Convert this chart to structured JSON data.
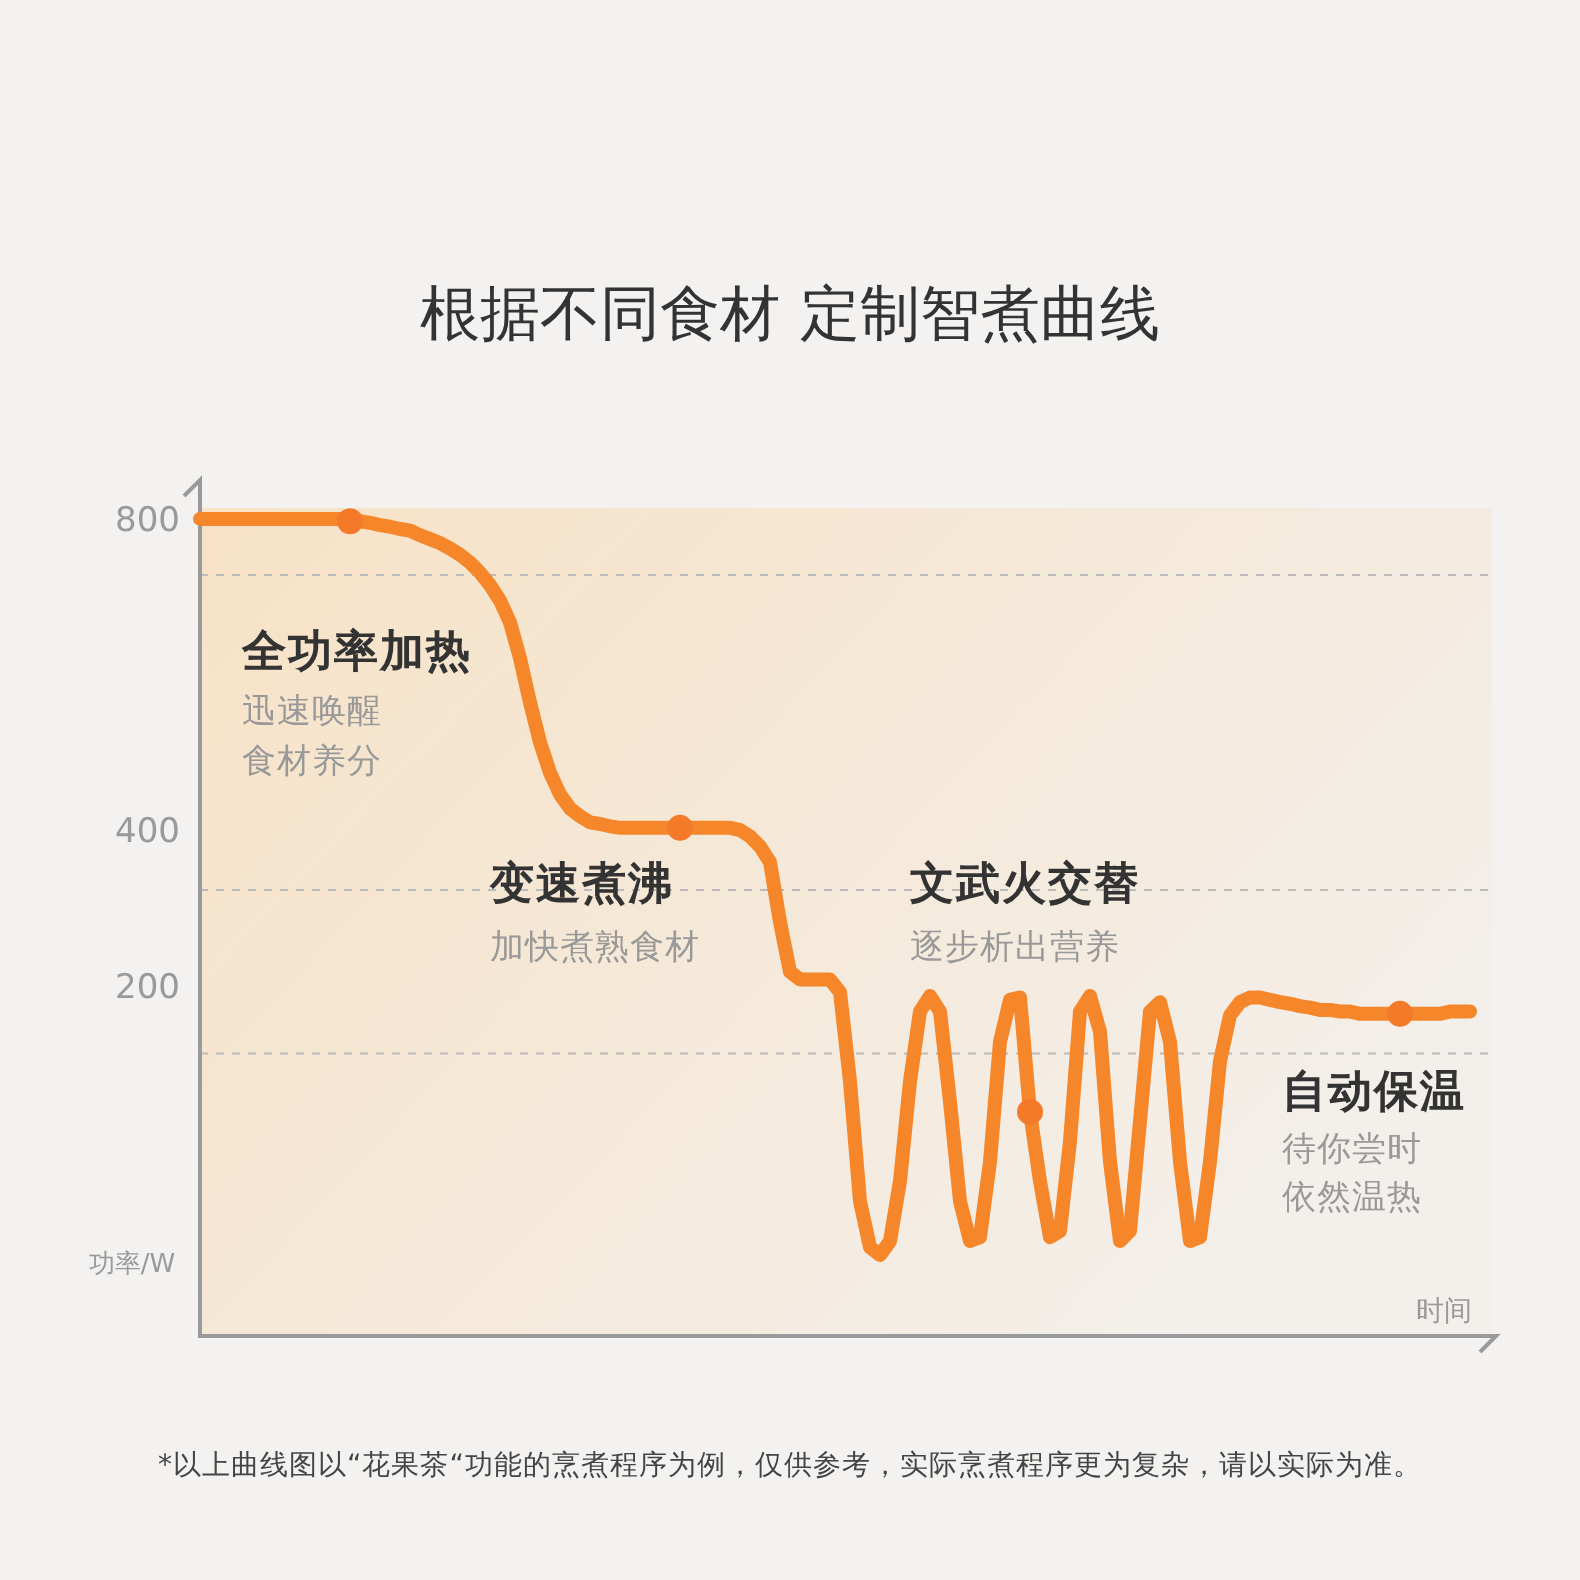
{
  "chart_data": {
    "type": "line",
    "title": "根据不同食材 定制智煮曲线",
    "xlabel": "时间",
    "ylabel": "功率/W",
    "categories": [
      null,
      null,
      null,
      null,
      null,
      null,
      null,
      null,
      null,
      null,
      null,
      null,
      null,
      null,
      null,
      null,
      null,
      null,
      null,
      null,
      null,
      null,
      null,
      null,
      null,
      null,
      null,
      null,
      null,
      null,
      null,
      null,
      null,
      null,
      null,
      null,
      null,
      null,
      null,
      null,
      null,
      null,
      null,
      null,
      null,
      null,
      null,
      null,
      null,
      null,
      null,
      null,
      null,
      null,
      null,
      null,
      null,
      null,
      null,
      null,
      null,
      null,
      null,
      null,
      null,
      null,
      null,
      null,
      null,
      null,
      null,
      null,
      null,
      null,
      null,
      null,
      null,
      null,
      null,
      null,
      null,
      null,
      null,
      null,
      null,
      null,
      null,
      null,
      null,
      null,
      null,
      null,
      null,
      null,
      null,
      null,
      null,
      null,
      null,
      null,
      null,
      null,
      null,
      null,
      null,
      null,
      null,
      null,
      null,
      null,
      null,
      null,
      null,
      null,
      null,
      null,
      null,
      null,
      null,
      null,
      null,
      null,
      null,
      null,
      null,
      null,
      null,
      null
    ],
    "series": [
      {
        "color": "#f5862a",
        "values": [
          800,
          800,
          800,
          800,
          800,
          800,
          800,
          800,
          800,
          800,
          800,
          800,
          800,
          800,
          800,
          797,
          797,
          795,
          792,
          790,
          787,
          785,
          779,
          774,
          769,
          762,
          754,
          744,
          731,
          715,
          695,
          667,
          621,
          564,
          513,
          474,
          446,
          428,
          418,
          410,
          408,
          405,
          403,
          403,
          403,
          403,
          403,
          403,
          403,
          403,
          403,
          403,
          403,
          403,
          400,
          392,
          379,
          359,
          282,
          218,
          208,
          208,
          208,
          208,
          192,
          77,
          -77,
          -136,
          -146,
          -128,
          -51,
          77,
          167,
          187,
          167,
          51,
          -77,
          -128,
          -123,
          -26,
          128,
          182,
          185,
          38,
          -51,
          -123,
          -115,
          0,
          167,
          187,
          141,
          -26,
          -128,
          -115,
          26,
          167,
          179,
          128,
          -26,
          -128,
          -123,
          -26,
          103,
          162,
          179,
          185,
          185,
          182,
          179,
          177,
          174,
          172,
          169,
          169,
          167,
          167,
          164,
          164,
          164,
          164,
          164,
          164,
          164,
          164,
          164,
          167,
          167,
          167
        ]
      },
      {
        "type": "scatter",
        "marker": "circle",
        "color": "#f47a2a",
        "values": [
          null,
          null,
          null,
          null,
          null,
          null,
          null,
          null,
          null,
          null,
          null,
          null,
          null,
          null,
          null,
          797,
          null,
          null,
          null,
          null,
          null,
          null,
          null,
          null,
          null,
          null,
          null,
          null,
          null,
          null,
          null,
          null,
          null,
          null,
          null,
          null,
          null,
          null,
          null,
          null,
          null,
          null,
          null,
          null,
          null,
          null,
          null,
          null,
          403,
          null,
          null,
          null,
          null,
          null,
          null,
          null,
          null,
          null,
          null,
          null,
          null,
          null,
          null,
          null,
          null,
          null,
          null,
          null,
          null,
          null,
          null,
          null,
          null,
          null,
          null,
          null,
          null,
          null,
          null,
          null,
          null,
          null,
          null,
          38,
          null,
          null,
          null,
          null,
          null,
          null,
          null,
          null,
          null,
          null,
          null,
          null,
          null,
          null,
          null,
          null,
          null,
          null,
          null,
          null,
          null,
          null,
          null,
          null,
          null,
          null,
          null,
          null,
          null,
          null,
          null,
          null,
          null,
          null,
          null,
          null,
          164,
          null,
          null,
          null,
          null,
          null,
          null,
          null
        ]
      }
    ],
    "ylim": [
      -250,
      850
    ],
    "yticks": [
      800,
      400,
      200
    ],
    "tick_labels": "y",
    "grid": false,
    "ref_lines": [
      {
        "axis": "y",
        "value": 728,
        "line_style": "dashed",
        "color": "#bbbbbb"
      },
      {
        "axis": "y",
        "value": 323,
        "line_style": "dashed",
        "color": "#bbbbbb"
      },
      {
        "axis": "y",
        "value": 113,
        "line_style": "dashed",
        "color": "#bbbbbb"
      }
    ],
    "annotations": [
      "全功率加热",
      "迅速唤醒",
      "食材养分",
      "变速煮沸",
      "加快煮熟食材",
      "文武火交替",
      "逐步析出营养",
      "自动保温",
      "待你尝时",
      "依然温热",
      "*以上曲线图以“花果茶“功能的烹煮程序为例，仅供参考，实际烹煮程序更为复杂，请以实际为准。"
    ]
  }
}
